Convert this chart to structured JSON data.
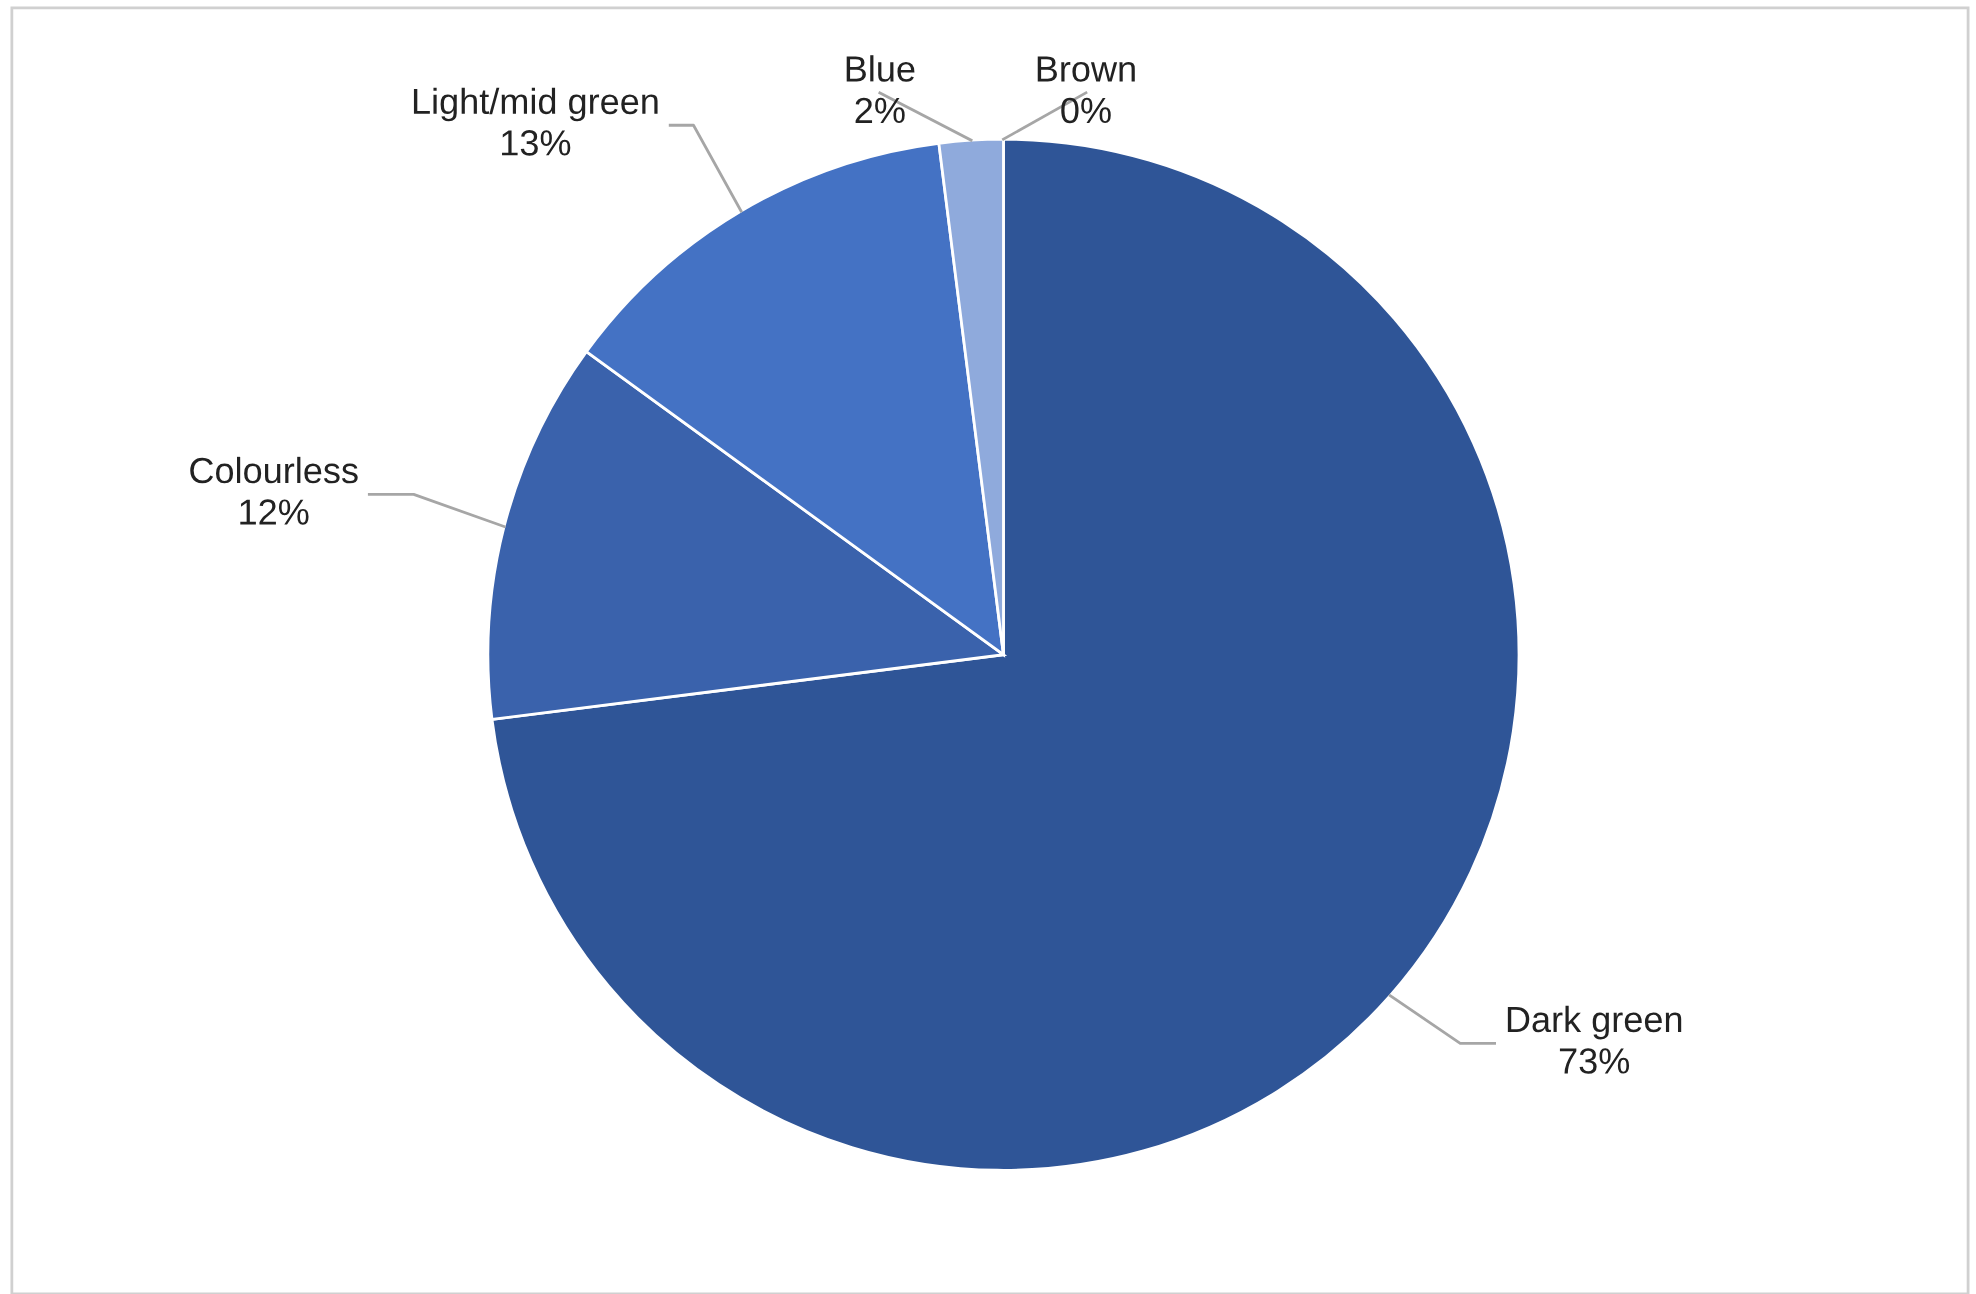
{
  "chart_data": {
    "type": "pie",
    "categories": [
      "Dark green",
      "Colourless",
      "Light/mid green",
      "Blue",
      "Brown"
    ],
    "values": [
      73,
      12,
      13,
      2,
      0
    ],
    "colors": [
      "#2f5597",
      "#3a62ac",
      "#4472c4",
      "#8faadc",
      "#c9d5ee"
    ],
    "value_labels": [
      "73%",
      "12%",
      "13%",
      "2%",
      "0%"
    ],
    "legend": false
  }
}
